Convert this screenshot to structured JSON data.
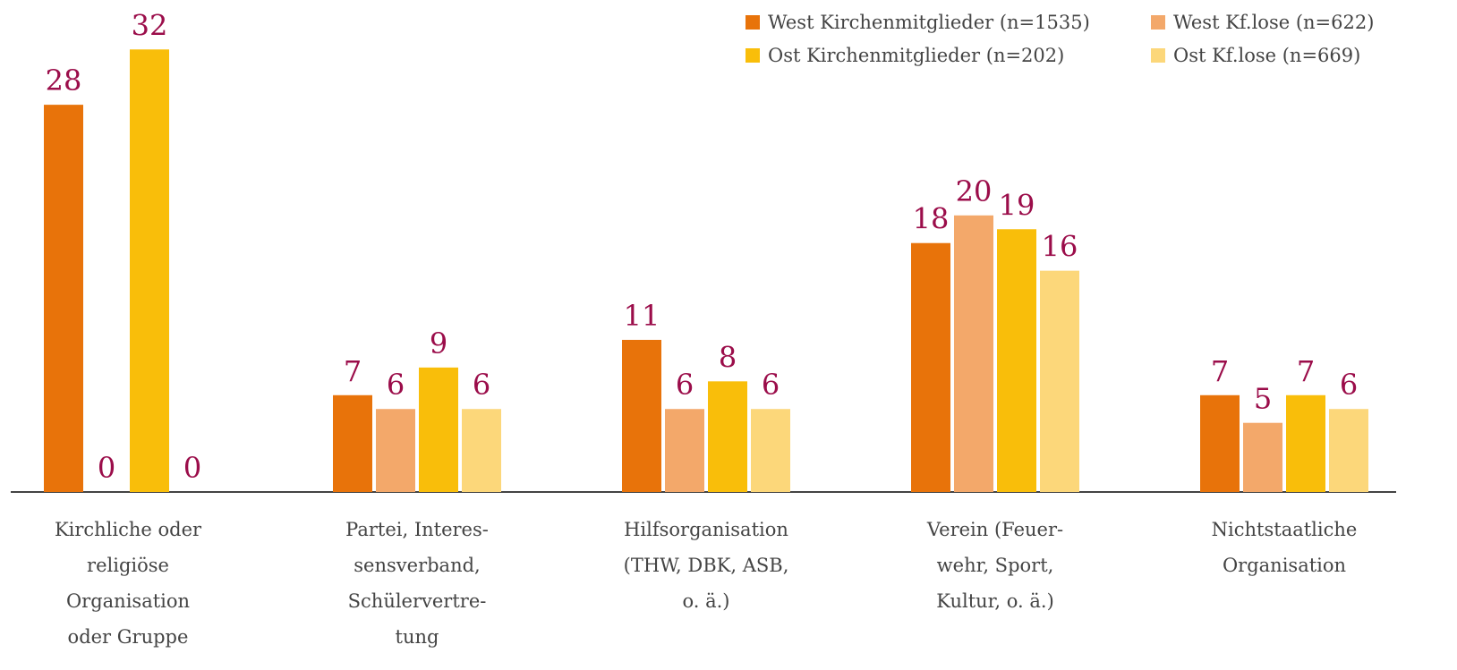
{
  "chart_data": {
    "type": "bar",
    "categories": [
      [
        "Kirchliche oder",
        "religiöse",
        "Organisation",
        "oder Gruppe"
      ],
      [
        "Partei, Interes-",
        "sensverband,",
        "Schülervertre-",
        "tung"
      ],
      [
        "Hilfsorganisation",
        "(THW, DBK, ASB,",
        "o. ä.)"
      ],
      [
        "Verein (Feuer-",
        "wehr, Sport,",
        "Kultur, o. ä.)"
      ],
      [
        "Nichtstaatliche",
        "Organisation"
      ]
    ],
    "series": [
      {
        "name": "West Kirchenmitglieder (n=1535)",
        "color": "#e8730a",
        "values": [
          28,
          7,
          11,
          18,
          7
        ]
      },
      {
        "name": "West Kf.lose (n=622)",
        "color": "#f3a86a",
        "values": [
          0,
          6,
          6,
          20,
          5
        ]
      },
      {
        "name": "Ost Kirchenmitglieder (n=202)",
        "color": "#f9be0a",
        "values": [
          32,
          9,
          8,
          19,
          7
        ]
      },
      {
        "name": "Ost Kf.lose (n=669)",
        "color": "#fcd77a",
        "values": [
          0,
          6,
          6,
          16,
          6
        ]
      }
    ]
  }
}
